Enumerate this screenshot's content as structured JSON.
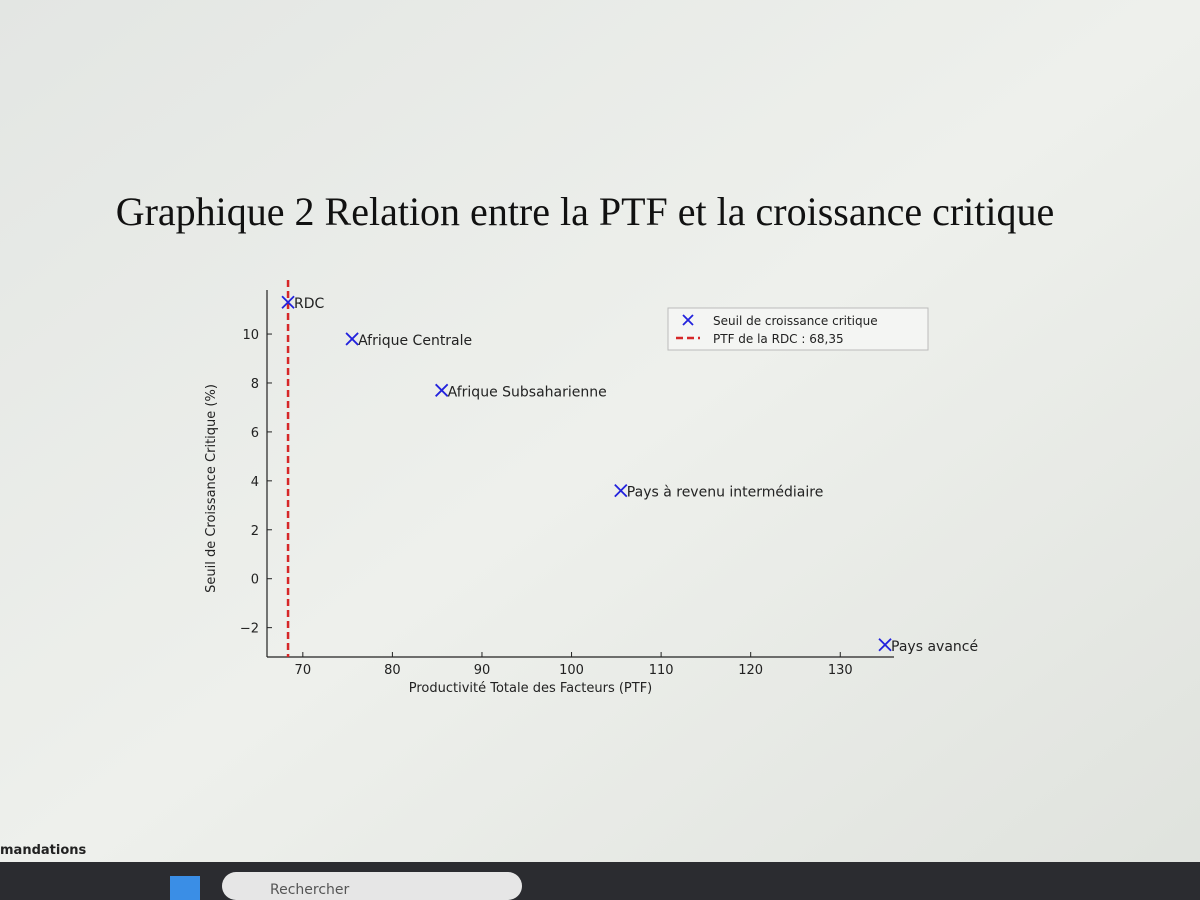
{
  "document": {
    "title": "Graphique 2 Relation entre la PTF et la croissance critique",
    "footer_text": "mandations"
  },
  "taskbar": {
    "search": "Rechercher"
  },
  "chart_data": {
    "type": "scatter",
    "xlabel": "Productivité Totale des Facteurs (PTF)",
    "ylabel": "Seuil de Croissance Critique (%)",
    "series": [
      {
        "name": "Seuil de croissance critique",
        "color": "#2222dd",
        "x": [
          68.35,
          75.5,
          85.5,
          105.5,
          135
        ],
        "values": [
          11.3,
          9.8,
          7.7,
          3.6,
          -2.7
        ],
        "point_labels": [
          "RDC",
          "Afrique Centrale",
          "Afrique Subsaharienne",
          "Pays à revenu intermédiaire",
          "Pays avancé"
        ]
      }
    ],
    "vline": {
      "value": 68.35,
      "label": "PTF de la RDC : 68,35",
      "color": "#d62728"
    },
    "xlim": [
      66,
      136
    ],
    "xticks": [
      70,
      80,
      90,
      100,
      110,
      120,
      130
    ],
    "ylim": [
      -3.2,
      11.8
    ],
    "yticks": [
      {
        "value": -2,
        "label": "−2"
      },
      0,
      2,
      4,
      6,
      8,
      10
    ],
    "legend": "upper right",
    "grid": false
  }
}
